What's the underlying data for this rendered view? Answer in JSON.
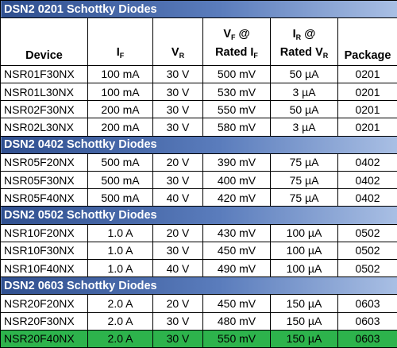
{
  "table": {
    "header": [
      [
        [
          {
            "t": "Device"
          }
        ]
      ],
      [
        [
          {
            "t": "I"
          },
          {
            "s": "F"
          }
        ]
      ],
      [
        [
          {
            "t": "V"
          },
          {
            "s": "R"
          }
        ]
      ],
      [
        [
          {
            "t": "V"
          },
          {
            "s": "F"
          },
          {
            "t": " @"
          }
        ],
        [
          {
            "t": "Rated I"
          },
          {
            "s": "F"
          }
        ]
      ],
      [
        [
          {
            "t": "I"
          },
          {
            "s": "R"
          },
          {
            "t": " @"
          }
        ],
        [
          {
            "t": "Rated V"
          },
          {
            "s": "R"
          }
        ]
      ],
      [
        [
          {
            "t": "Package"
          }
        ]
      ]
    ],
    "sections": [
      {
        "title": "DSN2 0201 Schottky Diodes",
        "rows": [
          [
            "NSR01F30NX",
            "100 mA",
            "30 V",
            "500 mV",
            "50 µA",
            "0201"
          ],
          [
            "NSR01L30NX",
            "100 mA",
            "30 V",
            "530 mV",
            "3 µA",
            "0201"
          ],
          [
            "NSR02F30NX",
            "200 mA",
            "30 V",
            "550 mV",
            "50 µA",
            "0201"
          ],
          [
            "NSR02L30NX",
            "200 mA",
            "30 V",
            "580 mV",
            "3 µA",
            "0201"
          ]
        ]
      },
      {
        "title": "DSN2 0402 Schottky Diodes",
        "rows": [
          [
            "NSR05F20NX",
            "500 mA",
            "20 V",
            "390 mV",
            "75 µA",
            "0402"
          ],
          [
            "NSR05F30NX",
            "500 mA",
            "30 V",
            "400 mV",
            "75 µA",
            "0402"
          ],
          [
            "NSR05F40NX",
            "500 mA",
            "40 V",
            "420 mV",
            "75 µA",
            "0402"
          ]
        ]
      },
      {
        "title": "DSN2 0502 Schottky Diodes",
        "rows": [
          [
            "NSR10F20NX",
            "1.0 A",
            "20 V",
            "430 mV",
            "100 µA",
            "0502"
          ],
          [
            "NSR10F30NX",
            "1.0 A",
            "30 V",
            "450 mV",
            "100 µA",
            "0502"
          ],
          [
            "NSR10F40NX",
            "1.0 A",
            "40 V",
            "490 mV",
            "100 µA",
            "0502"
          ]
        ]
      },
      {
        "title": "DSN2 0603 Schottky Diodes",
        "rows": [
          [
            "NSR20F20NX",
            "2.0 A",
            "20 V",
            "450 mV",
            "150 µA",
            "0603"
          ],
          [
            "NSR20F30NX",
            "2.0 A",
            "30 V",
            "480 mV",
            "150 µA",
            "0603"
          ],
          [
            "NSR20F40NX",
            "2.0 A",
            "30 V",
            "550 mV",
            "150 µA",
            "0603"
          ]
        ],
        "highlight_row": 2,
        "highlight_color": "#2db34c"
      }
    ]
  }
}
